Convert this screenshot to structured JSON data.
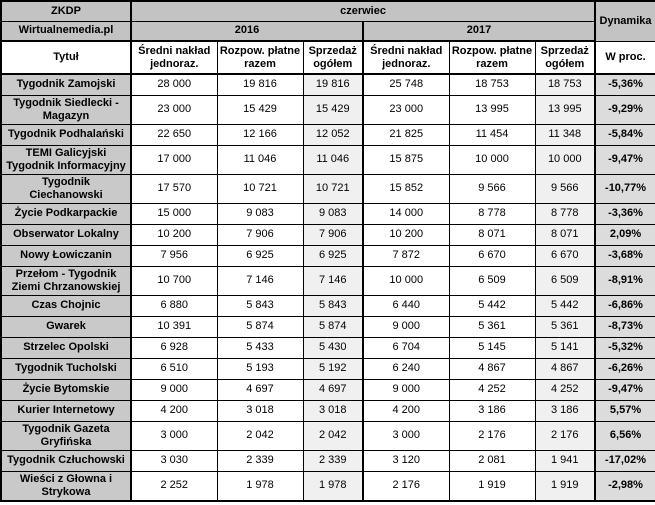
{
  "colors": {
    "header_gray": "#c3c3c3",
    "title_column_gray": "#c9c9c9",
    "shaded_sales_column": "#f0f0f0",
    "dynamics_column_gray": "#dcdcdc",
    "border_black": "#000000",
    "cell_white": "#ffffff"
  },
  "chart_data": {
    "type": "table",
    "header": {
      "org": "ZKDP",
      "source": "Wirtualnemedia.pl",
      "month": "czerwiec",
      "dynamics_label": "Dynamika",
      "years": [
        "2016",
        "2017"
      ],
      "title_column": "Tytuł",
      "metric_columns": [
        "Średni nakład jednoraz.",
        "Rozpow. płatne razem",
        "Sprzedaż ogółem"
      ],
      "percent_column": "W proc."
    },
    "rows": [
      [
        "Tygodnik Zamojski",
        "28 000",
        "19 816",
        "19 816",
        "25 748",
        "18 753",
        "18 753",
        "-5,36%"
      ],
      [
        "Tygodnik Siedlecki - Magazyn",
        "23 000",
        "15 429",
        "15 429",
        "23 000",
        "13 995",
        "13 995",
        "-9,29%"
      ],
      [
        "Tygodnik Podhalański",
        "22 650",
        "12 166",
        "12 052",
        "21 825",
        "11 454",
        "11 348",
        "-5,84%"
      ],
      [
        "TEMI Galicyjski Tygodnik Informacyjny",
        "17 000",
        "11 046",
        "11 046",
        "15 875",
        "10 000",
        "10 000",
        "-9,47%"
      ],
      [
        "Tygodnik Ciechanowski",
        "17 570",
        "10 721",
        "10 721",
        "15 852",
        "9 566",
        "9 566",
        "-10,77%"
      ],
      [
        "Życie Podkarpackie",
        "15 000",
        "9 083",
        "9 083",
        "14 000",
        "8 778",
        "8 778",
        "-3,36%"
      ],
      [
        "Obserwator Lokalny",
        "10 200",
        "7 906",
        "7 906",
        "10 200",
        "8 071",
        "8 071",
        "2,09%"
      ],
      [
        "Nowy Łowiczanin",
        "7 956",
        "6 925",
        "6 925",
        "7 872",
        "6 670",
        "6 670",
        "-3,68%"
      ],
      [
        "Przełom - Tygodnik Ziemi Chrzanowskiej",
        "10 700",
        "7 146",
        "7 146",
        "10 000",
        "6 509",
        "6 509",
        "-8,91%"
      ],
      [
        "Czas Chojnic",
        "6 880",
        "5 843",
        "5 843",
        "6 440",
        "5 442",
        "5 442",
        "-6,86%"
      ],
      [
        "Gwarek",
        "10 391",
        "5 874",
        "5 874",
        "9 000",
        "5 361",
        "5 361",
        "-8,73%"
      ],
      [
        "Strzelec Opolski",
        "6 928",
        "5 433",
        "5 430",
        "6 704",
        "5 145",
        "5 141",
        "-5,32%"
      ],
      [
        "Tygodnik Tucholski",
        "6 510",
        "5 193",
        "5 192",
        "6 240",
        "4 867",
        "4 867",
        "-6,26%"
      ],
      [
        "Życie Bytomskie",
        "9 000",
        "4 697",
        "4 697",
        "9 000",
        "4 252",
        "4 252",
        "-9,47%"
      ],
      [
        "Kurier Internetowy",
        "4 200",
        "3 018",
        "3 018",
        "4 200",
        "3 186",
        "3 186",
        "5,57%"
      ],
      [
        "Tygodnik Gazeta Gryfińska",
        "3 000",
        "2 042",
        "2 042",
        "3 000",
        "2 176",
        "2 176",
        "6,56%"
      ],
      [
        "Tygodnik Człuchowski",
        "3 030",
        "2 339",
        "2 339",
        "3 120",
        "2 081",
        "1 941",
        "-17,02%"
      ],
      [
        "Wieści z Głowna i Strykowa",
        "2 252",
        "1 978",
        "1 978",
        "2 176",
        "1 919",
        "1 919",
        "-2,98%"
      ]
    ]
  }
}
